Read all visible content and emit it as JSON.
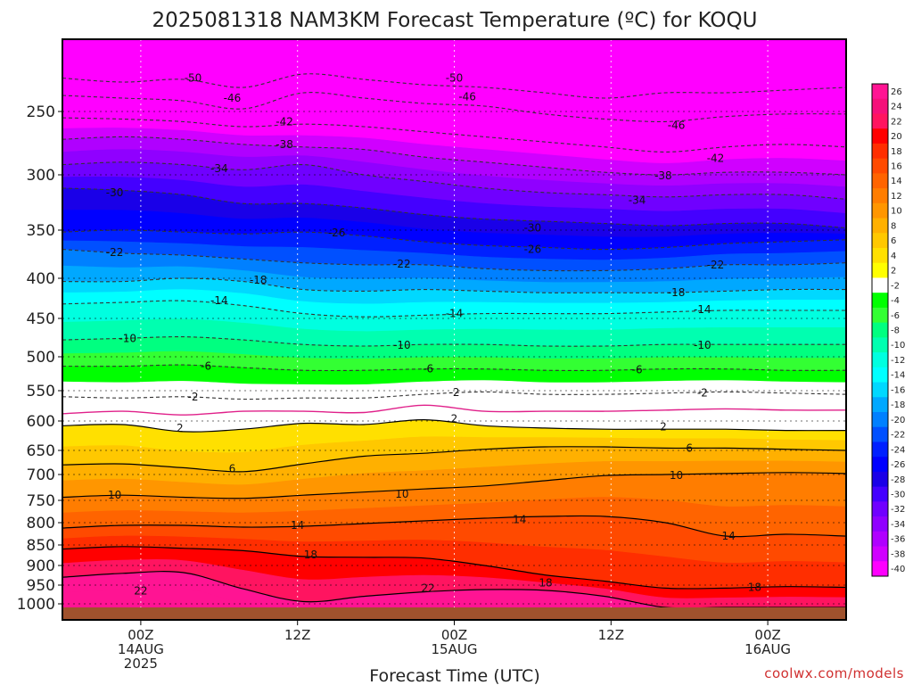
{
  "chart_data": {
    "type": "heatmap",
    "title": "2025081318 NAM3KM Forecast Temperature (ºC) for KOQU",
    "xlabel": "Forecast Time (UTC)",
    "ylabel": "",
    "x_ticks": [
      {
        "hour": 6,
        "lines": [
          "00Z",
          "14AUG",
          "2025"
        ]
      },
      {
        "hour": 18,
        "lines": [
          "12Z"
        ]
      },
      {
        "hour": 30,
        "lines": [
          "00Z",
          "15AUG"
        ]
      },
      {
        "hour": 42,
        "lines": [
          "12Z"
        ]
      },
      {
        "hour": 54,
        "lines": [
          "00Z",
          "16AUG"
        ]
      }
    ],
    "xlim_hours": [
      0,
      60
    ],
    "y_ticks": [
      250,
      300,
      350,
      400,
      450,
      500,
      550,
      600,
      650,
      700,
      750,
      800,
      850,
      900,
      950,
      1000
    ],
    "ylim_hPa": [
      200,
      1030
    ],
    "grid": true,
    "colorbar": {
      "position": "right",
      "ticks": [
        26,
        24,
        22,
        20,
        18,
        16,
        14,
        12,
        10,
        8,
        6,
        4,
        2,
        -2,
        -4,
        -6,
        -8,
        -10,
        -12,
        -14,
        -16,
        -18,
        -20,
        -22,
        -24,
        -26,
        -28,
        -30,
        -32,
        -34,
        -36,
        -38,
        -40
      ],
      "colors": [
        "#ff1493",
        "#f5107a",
        "#ff1460",
        "#ff0000",
        "#ff2e00",
        "#ff4a00",
        "#ff6400",
        "#ff7d00",
        "#ff9600",
        "#ffb000",
        "#ffc800",
        "#ffe000",
        "#ffff00",
        "#ffffff",
        "#00ff00",
        "#33ff33",
        "#00ff80",
        "#00ffb0",
        "#00ffe0",
        "#00ffff",
        "#00d8ff",
        "#00a8ff",
        "#0080ff",
        "#0050ff",
        "#0020ff",
        "#0000ff",
        "#1a00e8",
        "#4400ff",
        "#7000ff",
        "#9000ff",
        "#b000ff",
        "#d000ff",
        "#ff00ff"
      ]
    },
    "levels": [
      {
        "t": -50,
        "pressure": [
          225,
          228,
          226,
          232,
          222,
          226,
          230,
          232,
          236,
          240,
          236,
          236,
          234,
          232
        ],
        "label": "-50",
        "label_pos": [
          [
            10,
            225
          ],
          [
            30,
            225
          ]
        ],
        "style": "dashed"
      },
      {
        "t": -46,
        "pressure": [
          238,
          240,
          242,
          248,
          236,
          240,
          244,
          246,
          252,
          256,
          258,
          254,
          252,
          252
        ],
        "label": "-46",
        "label_pos": [
          [
            13,
            240
          ],
          [
            31,
            239
          ],
          [
            47,
            261
          ]
        ],
        "style": "dashed"
      },
      {
        "t": -42,
        "pressure": [
          255,
          256,
          258,
          262,
          260,
          262,
          266,
          270,
          274,
          278,
          282,
          278,
          276,
          278
        ],
        "label": "-42",
        "label_pos": [
          [
            17,
            258
          ],
          [
            50,
            287
          ]
        ],
        "style": "dashed"
      },
      {
        "t": -38,
        "pressure": [
          272,
          270,
          272,
          276,
          278,
          280,
          286,
          290,
          294,
          298,
          300,
          298,
          298,
          300
        ],
        "label": "-38",
        "label_pos": [
          [
            17,
            276
          ],
          [
            46,
            301
          ]
        ],
        "style": "dashed"
      },
      {
        "t": -34,
        "pressure": [
          292,
          290,
          292,
          296,
          292,
          300,
          306,
          312,
          316,
          318,
          320,
          318,
          318,
          322
        ],
        "label": "-34",
        "label_pos": [
          [
            12,
            295
          ],
          [
            44,
            323
          ]
        ],
        "style": "dashed"
      },
      {
        "t": -30,
        "pressure": [
          312,
          314,
          318,
          326,
          326,
          330,
          336,
          340,
          342,
          344,
          346,
          344,
          344,
          348
        ],
        "label": "-30",
        "label_pos": [
          [
            4,
            316
          ],
          [
            36,
            348
          ]
        ],
        "style": "dashed"
      },
      {
        "t": -26,
        "pressure": [
          352,
          350,
          352,
          354,
          352,
          356,
          362,
          366,
          368,
          370,
          368,
          364,
          362,
          360
        ],
        "label": "-26",
        "label_pos": [
          [
            21,
            353
          ],
          [
            36,
            370
          ]
        ],
        "style": "dashed"
      },
      {
        "t": -22,
        "pressure": [
          370,
          374,
          376,
          380,
          384,
          386,
          386,
          390,
          392,
          392,
          390,
          386,
          386,
          384
        ],
        "label": "-22",
        "label_pos": [
          [
            4,
            373
          ],
          [
            26,
            385
          ],
          [
            50,
            386
          ]
        ],
        "style": "dashed"
      },
      {
        "t": -18,
        "pressure": [
          404,
          404,
          400,
          404,
          414,
          416,
          414,
          416,
          418,
          418,
          418,
          416,
          414,
          414
        ],
        "label": "-18",
        "label_pos": [
          [
            15,
            402
          ],
          [
            47,
            418
          ]
        ],
        "style": "dashed"
      },
      {
        "t": -14,
        "pressure": [
          432,
          430,
          428,
          434,
          444,
          448,
          446,
          444,
          444,
          444,
          442,
          440,
          440,
          440
        ],
        "label": "-14",
        "label_pos": [
          [
            12,
            428
          ],
          [
            30,
            444
          ],
          [
            49,
            439
          ]
        ],
        "style": "dashed"
      },
      {
        "t": -10,
        "pressure": [
          478,
          476,
          474,
          478,
          484,
          486,
          484,
          484,
          486,
          486,
          484,
          484,
          484,
          484
        ],
        "label": "-10",
        "label_pos": [
          [
            5,
            476
          ],
          [
            26,
            485
          ],
          [
            49,
            485
          ]
        ],
        "style": "dashed"
      },
      {
        "t": -6,
        "pressure": [
          514,
          514,
          512,
          516,
          520,
          520,
          518,
          518,
          520,
          520,
          518,
          518,
          520,
          520
        ],
        "label": "-6",
        "label_pos": [
          [
            11,
            514
          ],
          [
            28,
            518
          ],
          [
            44,
            519
          ]
        ],
        "style": "dashed"
      },
      {
        "t": -2,
        "pressure": [
          560,
          562,
          560,
          564,
          562,
          562,
          556,
          552,
          556,
          556,
          554,
          552,
          554,
          556
        ],
        "label": "-2",
        "label_pos": [
          [
            10,
            560
          ],
          [
            30,
            553
          ],
          [
            49,
            554
          ]
        ],
        "style": "dashed"
      },
      {
        "t": 0,
        "pressure": [
          588,
          584,
          590,
          584,
          584,
          586,
          574,
          584,
          584,
          584,
          582,
          580,
          582,
          582
        ],
        "label": "",
        "label_pos": [],
        "style": "magenta"
      },
      {
        "t": 2,
        "pressure": [
          608,
          606,
          618,
          614,
          604,
          606,
          598,
          608,
          612,
          614,
          614,
          614,
          616,
          616
        ],
        "label": "2",
        "label_pos": [
          [
            9,
            612
          ],
          [
            30,
            596
          ],
          [
            46,
            610
          ]
        ],
        "style": "solid"
      },
      {
        "t": 6,
        "pressure": [
          680,
          678,
          686,
          694,
          678,
          662,
          656,
          648,
          644,
          644,
          646,
          646,
          648,
          650
        ],
        "label": "6",
        "label_pos": [
          [
            13,
            688
          ],
          [
            48,
            646
          ]
        ],
        "style": "solid"
      },
      {
        "t": 10,
        "pressure": [
          744,
          740,
          744,
          746,
          740,
          734,
          728,
          722,
          712,
          702,
          700,
          698,
          696,
          698
        ],
        "label": "10",
        "label_pos": [
          [
            4,
            740
          ],
          [
            26,
            738
          ],
          [
            47,
            702
          ]
        ],
        "style": "solid"
      },
      {
        "t": 14,
        "pressure": [
          812,
          806,
          806,
          810,
          808,
          802,
          796,
          790,
          786,
          786,
          800,
          830,
          826,
          830
        ],
        "label": "14",
        "label_pos": [
          [
            18,
            806
          ],
          [
            35,
            793
          ],
          [
            51,
            830
          ]
        ],
        "style": "solid"
      },
      {
        "t": 18,
        "pressure": [
          860,
          854,
          858,
          864,
          878,
          880,
          882,
          900,
          924,
          940,
          958,
          958,
          954,
          956
        ],
        "label": "18",
        "label_pos": [
          [
            19,
            874
          ],
          [
            37,
            944
          ],
          [
            53,
            956
          ]
        ],
        "style": "solid"
      },
      {
        "t": 22,
        "pressure": [
          930,
          920,
          918,
          960,
          994,
          980,
          968,
          962,
          964,
          980,
          1010,
          1010,
          1010,
          1010
        ],
        "label": "22",
        "label_pos": [
          [
            6,
            966
          ],
          [
            28,
            958
          ]
        ],
        "style": "solid"
      }
    ],
    "ground": {
      "pressure": 1010,
      "color": "#a0522d"
    },
    "credit": "coolwx.com/models"
  },
  "colors": {
    "contour_dashed": "#333333",
    "contour_solid": "#000000",
    "freezing_line": "#e0208a",
    "grid": "#ffffff",
    "dotted_grid": "#000000"
  }
}
